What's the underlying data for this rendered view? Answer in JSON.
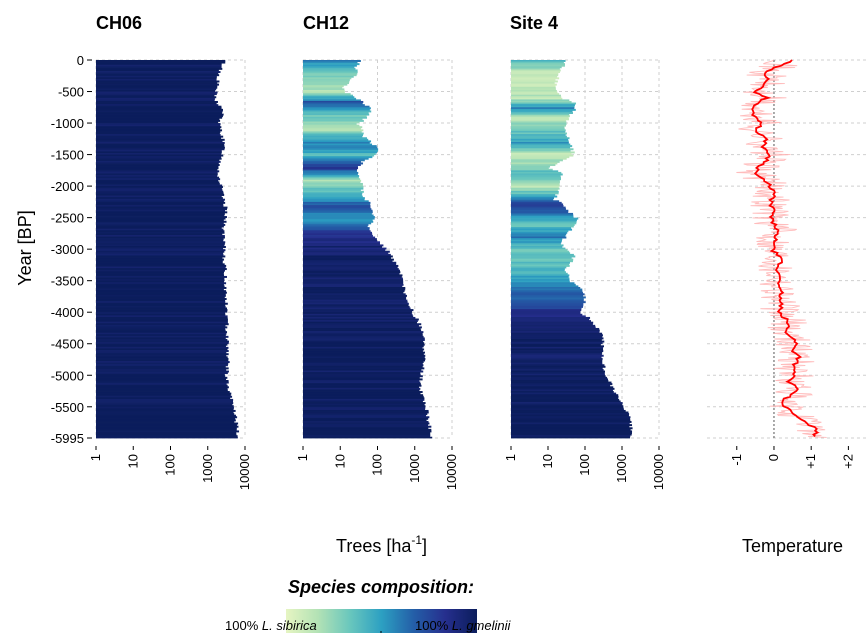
{
  "chart_data": [
    {
      "type": "bar",
      "title": "CH06",
      "orientation": "horizontal",
      "xscale": "log",
      "xlim": [
        1,
        10000
      ],
      "xticks": [
        "1",
        "10",
        "100",
        "1000",
        "10000"
      ],
      "ylabel": "Year [BP]",
      "yticks": [
        "0",
        "-500",
        "-1000",
        "-1500",
        "-2000",
        "-2500",
        "-3000",
        "-3500",
        "-4000",
        "-4500",
        "-5000",
        "-5500",
        "-5995"
      ],
      "ylim": [
        0,
        -5995
      ],
      "profile": [
        {
          "year": 0,
          "trees": 2800
        },
        {
          "year": -200,
          "trees": 2000
        },
        {
          "year": -400,
          "trees": 1800
        },
        {
          "year": -600,
          "trees": 1500
        },
        {
          "year": -800,
          "trees": 2600
        },
        {
          "year": -1000,
          "trees": 2000
        },
        {
          "year": -1200,
          "trees": 2500
        },
        {
          "year": -1400,
          "trees": 2700
        },
        {
          "year": -1600,
          "trees": 2200
        },
        {
          "year": -1800,
          "trees": 1900
        },
        {
          "year": -2000,
          "trees": 2300
        },
        {
          "year": -2200,
          "trees": 2600
        },
        {
          "year": -2400,
          "trees": 3300
        },
        {
          "year": -2600,
          "trees": 2700
        },
        {
          "year": -2800,
          "trees": 2600
        },
        {
          "year": -3000,
          "trees": 2800
        },
        {
          "year": -3200,
          "trees": 2800
        },
        {
          "year": -3400,
          "trees": 3000
        },
        {
          "year": -3600,
          "trees": 3000
        },
        {
          "year": -3800,
          "trees": 3100
        },
        {
          "year": -4000,
          "trees": 3200
        },
        {
          "year": -4200,
          "trees": 3300
        },
        {
          "year": -4400,
          "trees": 3400
        },
        {
          "year": -4600,
          "trees": 3500
        },
        {
          "year": -4800,
          "trees": 3500
        },
        {
          "year": -5000,
          "trees": 3200
        },
        {
          "year": -5200,
          "trees": 3500
        },
        {
          "year": -5400,
          "trees": 4500
        },
        {
          "year": -5600,
          "trees": 5500
        },
        {
          "year": -5800,
          "trees": 6000
        },
        {
          "year": -5995,
          "trees": 6500
        }
      ],
      "composition": [
        {
          "year": 0,
          "gmelinii_share": 1.0
        },
        {
          "year": -5995,
          "gmelinii_share": 1.0
        }
      ]
    },
    {
      "type": "bar",
      "title": "CH12",
      "orientation": "horizontal",
      "xscale": "log",
      "xlim": [
        1,
        10000
      ],
      "xticks": [
        "1",
        "10",
        "100",
        "1000",
        "10000"
      ],
      "xlabel": "Trees [ha",
      "xlabel_exponent": "-1",
      "xlabel_close": "]",
      "ylim": [
        0,
        -5995
      ],
      "profile": [
        {
          "year": 0,
          "trees": 35
        },
        {
          "year": -100,
          "trees": 25
        },
        {
          "year": -200,
          "trees": 30
        },
        {
          "year": -300,
          "trees": 20
        },
        {
          "year": -400,
          "trees": 12
        },
        {
          "year": -500,
          "trees": 15
        },
        {
          "year": -600,
          "trees": 30
        },
        {
          "year": -700,
          "trees": 50
        },
        {
          "year": -800,
          "trees": 70
        },
        {
          "year": -900,
          "trees": 50
        },
        {
          "year": -1000,
          "trees": 30
        },
        {
          "year": -1100,
          "trees": 40
        },
        {
          "year": -1200,
          "trees": 40
        },
        {
          "year": -1300,
          "trees": 70
        },
        {
          "year": -1400,
          "trees": 110
        },
        {
          "year": -1500,
          "trees": 80
        },
        {
          "year": -1600,
          "trees": 40
        },
        {
          "year": -1700,
          "trees": 30
        },
        {
          "year": -1800,
          "trees": 30
        },
        {
          "year": -1900,
          "trees": 35
        },
        {
          "year": -2000,
          "trees": 40
        },
        {
          "year": -2100,
          "trees": 40
        },
        {
          "year": -2200,
          "trees": 50
        },
        {
          "year": -2300,
          "trees": 70
        },
        {
          "year": -2400,
          "trees": 70
        },
        {
          "year": -2500,
          "trees": 80
        },
        {
          "year": -2600,
          "trees": 60
        },
        {
          "year": -2700,
          "trees": 60
        },
        {
          "year": -2800,
          "trees": 80
        },
        {
          "year": -2900,
          "trees": 120
        },
        {
          "year": -3000,
          "trees": 180
        },
        {
          "year": -3200,
          "trees": 300
        },
        {
          "year": -3400,
          "trees": 420
        },
        {
          "year": -3600,
          "trees": 500
        },
        {
          "year": -3800,
          "trees": 600
        },
        {
          "year": -4000,
          "trees": 900
        },
        {
          "year": -4200,
          "trees": 1400
        },
        {
          "year": -4400,
          "trees": 1700
        },
        {
          "year": -4600,
          "trees": 1800
        },
        {
          "year": -4800,
          "trees": 1700
        },
        {
          "year": -5000,
          "trees": 1500
        },
        {
          "year": -5200,
          "trees": 1400
        },
        {
          "year": -5400,
          "trees": 1800
        },
        {
          "year": -5600,
          "trees": 2200
        },
        {
          "year": -5800,
          "trees": 2500
        },
        {
          "year": -5995,
          "trees": 2700
        }
      ],
      "composition": [
        {
          "year": 0,
          "gmelinii_share": 0.6
        },
        {
          "year": -200,
          "gmelinii_share": 0.3
        },
        {
          "year": -500,
          "gmelinii_share": 0.15
        },
        {
          "year": -650,
          "gmelinii_share": 0.7
        },
        {
          "year": -900,
          "gmelinii_share": 0.3
        },
        {
          "year": -1100,
          "gmelinii_share": 0.2
        },
        {
          "year": -1300,
          "gmelinii_share": 0.6
        },
        {
          "year": -1500,
          "gmelinii_share": 0.4
        },
        {
          "year": -1700,
          "gmelinii_share": 0.8
        },
        {
          "year": -1900,
          "gmelinii_share": 0.2
        },
        {
          "year": -2100,
          "gmelinii_share": 0.4
        },
        {
          "year": -2300,
          "gmelinii_share": 0.7
        },
        {
          "year": -2500,
          "gmelinii_share": 0.5
        },
        {
          "year": -2700,
          "gmelinii_share": 0.8
        },
        {
          "year": -2900,
          "gmelinii_share": 0.9
        },
        {
          "year": -3100,
          "gmelinii_share": 0.97
        },
        {
          "year": -5995,
          "gmelinii_share": 1.0
        }
      ]
    },
    {
      "type": "bar",
      "title": "Site 4",
      "orientation": "horizontal",
      "xscale": "log",
      "xlim": [
        1,
        10000
      ],
      "xticks": [
        "1",
        "10",
        "100",
        "1000",
        "10000"
      ],
      "ylim": [
        0,
        -5995
      ],
      "profile": [
        {
          "year": 0,
          "trees": 30
        },
        {
          "year": -200,
          "trees": 20
        },
        {
          "year": -400,
          "trees": 15
        },
        {
          "year": -600,
          "trees": 25
        },
        {
          "year": -700,
          "trees": 60
        },
        {
          "year": -900,
          "trees": 35
        },
        {
          "year": -1100,
          "trees": 30
        },
        {
          "year": -1300,
          "trees": 40
        },
        {
          "year": -1500,
          "trees": 50
        },
        {
          "year": -1600,
          "trees": 20
        },
        {
          "year": -1700,
          "trees": 10
        },
        {
          "year": -1800,
          "trees": 25
        },
        {
          "year": -2000,
          "trees": 20
        },
        {
          "year": -2200,
          "trees": 15
        },
        {
          "year": -2400,
          "trees": 40
        },
        {
          "year": -2500,
          "trees": 60
        },
        {
          "year": -2700,
          "trees": 40
        },
        {
          "year": -2900,
          "trees": 20
        },
        {
          "year": -3100,
          "trees": 50
        },
        {
          "year": -3300,
          "trees": 30
        },
        {
          "year": -3500,
          "trees": 40
        },
        {
          "year": -3600,
          "trees": 80
        },
        {
          "year": -3800,
          "trees": 100
        },
        {
          "year": -4000,
          "trees": 80
        },
        {
          "year": -4200,
          "trees": 200
        },
        {
          "year": -4400,
          "trees": 300
        },
        {
          "year": -4600,
          "trees": 300
        },
        {
          "year": -4800,
          "trees": 320
        },
        {
          "year": -5000,
          "trees": 350
        },
        {
          "year": -5200,
          "trees": 600
        },
        {
          "year": -5400,
          "trees": 900
        },
        {
          "year": -5600,
          "trees": 1500
        },
        {
          "year": -5800,
          "trees": 1800
        },
        {
          "year": -5995,
          "trees": 1700
        }
      ],
      "composition": [
        {
          "year": 0,
          "gmelinii_share": 0.4
        },
        {
          "year": -200,
          "gmelinii_share": 0.1
        },
        {
          "year": -600,
          "gmelinii_share": 0.15
        },
        {
          "year": -750,
          "gmelinii_share": 0.55
        },
        {
          "year": -900,
          "gmelinii_share": 0.15
        },
        {
          "year": -1300,
          "gmelinii_share": 0.5
        },
        {
          "year": -1500,
          "gmelinii_share": 0.1
        },
        {
          "year": -1800,
          "gmelinii_share": 0.4
        },
        {
          "year": -2000,
          "gmelinii_share": 0.15
        },
        {
          "year": -2300,
          "gmelinii_share": 0.8
        },
        {
          "year": -2600,
          "gmelinii_share": 0.35
        },
        {
          "year": -2800,
          "gmelinii_share": 0.6
        },
        {
          "year": -3000,
          "gmelinii_share": 0.3
        },
        {
          "year": -3300,
          "gmelinii_share": 0.4
        },
        {
          "year": -3600,
          "gmelinii_share": 0.6
        },
        {
          "year": -3900,
          "gmelinii_share": 0.75
        },
        {
          "year": -4100,
          "gmelinii_share": 0.95
        },
        {
          "year": -5995,
          "gmelinii_share": 1.0
        }
      ]
    },
    {
      "type": "line",
      "xlabel": "Temperature",
      "xlim": [
        -1.8,
        2.5
      ],
      "xticks": [
        "-1",
        "0",
        "+1",
        "+2"
      ],
      "xtick_values": [
        -1,
        0,
        1,
        2
      ],
      "ylim": [
        0,
        -5995
      ],
      "series": [
        {
          "color": "#ff0000",
          "band_color": "#ffb0b0",
          "points": [
            {
              "year": 0,
              "t": 0.5
            },
            {
              "year": -100,
              "t": 0.1
            },
            {
              "year": -200,
              "t": -0.3
            },
            {
              "year": -300,
              "t": -0.1
            },
            {
              "year": -400,
              "t": -0.3
            },
            {
              "year": -500,
              "t": -0.5
            },
            {
              "year": -600,
              "t": -0.2
            },
            {
              "year": -700,
              "t": -0.5
            },
            {
              "year": -800,
              "t": -0.6
            },
            {
              "year": -900,
              "t": -0.5
            },
            {
              "year": -1000,
              "t": -0.3
            },
            {
              "year": -1100,
              "t": -0.5
            },
            {
              "year": -1200,
              "t": -0.3
            },
            {
              "year": -1300,
              "t": -0.2
            },
            {
              "year": -1400,
              "t": -0.3
            },
            {
              "year": -1500,
              "t": -0.1
            },
            {
              "year": -1600,
              "t": -0.2
            },
            {
              "year": -1700,
              "t": -0.4
            },
            {
              "year": -1800,
              "t": -0.5
            },
            {
              "year": -1900,
              "t": -0.3
            },
            {
              "year": -2000,
              "t": -0.1
            },
            {
              "year": -2100,
              "t": 0.0
            },
            {
              "year": -2200,
              "t": -0.05
            },
            {
              "year": -2300,
              "t": -0.1
            },
            {
              "year": -2400,
              "t": 0.0
            },
            {
              "year": -2500,
              "t": -0.1
            },
            {
              "year": -2600,
              "t": 0.0
            },
            {
              "year": -2700,
              "t": 0.1
            },
            {
              "year": -2800,
              "t": 0.0
            },
            {
              "year": -2900,
              "t": 0.05
            },
            {
              "year": -3000,
              "t": -0.05
            },
            {
              "year": -3100,
              "t": 0.1
            },
            {
              "year": -3200,
              "t": 0.2
            },
            {
              "year": -3300,
              "t": 0.05
            },
            {
              "year": -3400,
              "t": 0.15
            },
            {
              "year": -3500,
              "t": 0.2
            },
            {
              "year": -3600,
              "t": 0.1
            },
            {
              "year": -3700,
              "t": 0.2
            },
            {
              "year": -3800,
              "t": 0.15
            },
            {
              "year": -3900,
              "t": 0.2
            },
            {
              "year": -4000,
              "t": 0.1
            },
            {
              "year": -4100,
              "t": 0.3
            },
            {
              "year": -4200,
              "t": 0.4
            },
            {
              "year": -4300,
              "t": 0.3
            },
            {
              "year": -4400,
              "t": 0.5
            },
            {
              "year": -4500,
              "t": 0.6
            },
            {
              "year": -4600,
              "t": 0.5
            },
            {
              "year": -4700,
              "t": 0.7
            },
            {
              "year": -4800,
              "t": 0.6
            },
            {
              "year": -4900,
              "t": 0.5
            },
            {
              "year": -5000,
              "t": 0.55
            },
            {
              "year": -5100,
              "t": 0.4
            },
            {
              "year": -5200,
              "t": 0.6
            },
            {
              "year": -5300,
              "t": 0.5
            },
            {
              "year": -5400,
              "t": 0.2
            },
            {
              "year": -5500,
              "t": 0.3
            },
            {
              "year": -5600,
              "t": 0.5
            },
            {
              "year": -5700,
              "t": 0.7
            },
            {
              "year": -5800,
              "t": 1.0
            },
            {
              "year": -5900,
              "t": 1.2
            },
            {
              "year": -5995,
              "t": 1.0
            }
          ]
        }
      ]
    }
  ],
  "legend": {
    "title": "Species composition:",
    "left_prefix": "100% ",
    "left_species": "L. sibirica",
    "right_prefix": "100% ",
    "right_species": "L. gmelinii",
    "colors": [
      "#e6f5c2",
      "#b3e2b5",
      "#6ac7bd",
      "#2ca0c2",
      "#245fa8",
      "#262f8e",
      "#0b1d5c"
    ]
  }
}
